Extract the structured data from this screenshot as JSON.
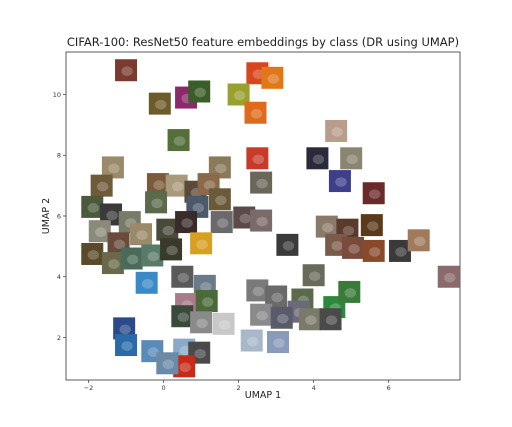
{
  "chart_data": {
    "type": "scatter",
    "title": "CIFAR-100: ResNet50 feature embeddings by class (DR using UMAP)",
    "xlabel": "UMAP 1",
    "ylabel": "UMAP 2",
    "xlim": [
      -2.6,
      7.9
    ],
    "ylim": [
      0.6,
      11.4
    ],
    "xticks": [
      -2,
      0,
      2,
      4,
      6
    ],
    "yticks": [
      2,
      4,
      6,
      8,
      10
    ],
    "grid": false,
    "legend": "none",
    "points": [
      {
        "x": -1.0,
        "y": 10.8,
        "c": "#7a3b2e"
      },
      {
        "x": -0.1,
        "y": 9.7,
        "c": "#6d5b2a"
      },
      {
        "x": 0.6,
        "y": 9.9,
        "c": "#8a2a6a"
      },
      {
        "x": 0.95,
        "y": 10.1,
        "c": "#3b5d2a"
      },
      {
        "x": 2.5,
        "y": 10.7,
        "c": "#d8461b"
      },
      {
        "x": 2.9,
        "y": 10.55,
        "c": "#e0781a"
      },
      {
        "x": 2.0,
        "y": 10.0,
        "c": "#9aa02e"
      },
      {
        "x": 2.45,
        "y": 9.4,
        "c": "#e06a1b"
      },
      {
        "x": 4.6,
        "y": 8.8,
        "c": "#b89d8a"
      },
      {
        "x": 0.4,
        "y": 8.5,
        "c": "#556f3a"
      },
      {
        "x": 2.5,
        "y": 7.9,
        "c": "#c83a2a"
      },
      {
        "x": 4.1,
        "y": 7.9,
        "c": "#2a2a3a"
      },
      {
        "x": 5.0,
        "y": 7.9,
        "c": "#8a8470"
      },
      {
        "x": 1.5,
        "y": 7.6,
        "c": "#8a7a5a"
      },
      {
        "x": 2.6,
        "y": 7.1,
        "c": "#6b665a"
      },
      {
        "x": 4.7,
        "y": 7.15,
        "c": "#3e3e8a"
      },
      {
        "x": 5.6,
        "y": 6.75,
        "c": "#6a2a2a"
      },
      {
        "x": -1.35,
        "y": 7.6,
        "c": "#9a8a6a"
      },
      {
        "x": -1.65,
        "y": 7.0,
        "c": "#6f5a3a"
      },
      {
        "x": -0.15,
        "y": 7.05,
        "c": "#7a5a3a"
      },
      {
        "x": 0.35,
        "y": 7.0,
        "c": "#a89a7a"
      },
      {
        "x": 0.85,
        "y": 6.8,
        "c": "#5a4a3a"
      },
      {
        "x": 1.2,
        "y": 7.05,
        "c": "#8a6a4a"
      },
      {
        "x": -1.9,
        "y": 6.3,
        "c": "#4a5a3a"
      },
      {
        "x": -1.4,
        "y": 6.05,
        "c": "#3a3a3a"
      },
      {
        "x": -0.9,
        "y": 5.8,
        "c": "#7a7a6a"
      },
      {
        "x": -0.2,
        "y": 6.45,
        "c": "#5a6a4a"
      },
      {
        "x": 0.9,
        "y": 6.3,
        "c": "#4a5a6a"
      },
      {
        "x": 1.5,
        "y": 6.55,
        "c": "#6a5a3a"
      },
      {
        "x": -1.7,
        "y": 5.5,
        "c": "#8a8a7a"
      },
      {
        "x": -1.2,
        "y": 5.1,
        "c": "#6a4a3a"
      },
      {
        "x": -0.6,
        "y": 5.4,
        "c": "#9a8a6a"
      },
      {
        "x": 0.1,
        "y": 5.55,
        "c": "#4a4a3a"
      },
      {
        "x": 0.6,
        "y": 5.8,
        "c": "#3a2a2a"
      },
      {
        "x": 1.55,
        "y": 5.8,
        "c": "#6a6a6a"
      },
      {
        "x": 2.15,
        "y": 5.95,
        "c": "#5a4a4a"
      },
      {
        "x": 2.6,
        "y": 5.85,
        "c": "#7a6a6a"
      },
      {
        "x": -1.9,
        "y": 4.75,
        "c": "#5a4a2a"
      },
      {
        "x": -1.35,
        "y": 4.45,
        "c": "#6a6a4a"
      },
      {
        "x": -0.85,
        "y": 4.6,
        "c": "#4a6a5a"
      },
      {
        "x": -0.3,
        "y": 4.7,
        "c": "#5a7a6a"
      },
      {
        "x": 0.2,
        "y": 4.9,
        "c": "#3a3a2a"
      },
      {
        "x": 1.0,
        "y": 5.1,
        "c": "#d8a020"
      },
      {
        "x": -0.45,
        "y": 3.8,
        "c": "#3a8ac8"
      },
      {
        "x": 0.5,
        "y": 4.0,
        "c": "#5a5a5a"
      },
      {
        "x": 1.1,
        "y": 3.7,
        "c": "#6a7a8a"
      },
      {
        "x": 0.6,
        "y": 3.1,
        "c": "#a87a8a"
      },
      {
        "x": 1.15,
        "y": 3.2,
        "c": "#4a6a3a"
      },
      {
        "x": 0.5,
        "y": 2.7,
        "c": "#3a4a3a"
      },
      {
        "x": 1.0,
        "y": 2.5,
        "c": "#8a8a8a"
      },
      {
        "x": 1.6,
        "y": 2.45,
        "c": "#c8c8c8"
      },
      {
        "x": 3.3,
        "y": 5.05,
        "c": "#3a3a3a"
      },
      {
        "x": 4.35,
        "y": 5.65,
        "c": "#8a7a6a"
      },
      {
        "x": 4.9,
        "y": 5.55,
        "c": "#5a3a2a"
      },
      {
        "x": 5.55,
        "y": 5.7,
        "c": "#5a3a1a"
      },
      {
        "x": 4.6,
        "y": 5.05,
        "c": "#7a5a4a"
      },
      {
        "x": 5.05,
        "y": 4.95,
        "c": "#7a4a3a"
      },
      {
        "x": 5.6,
        "y": 4.85,
        "c": "#8a4a2a"
      },
      {
        "x": 6.3,
        "y": 4.85,
        "c": "#3a3a3a"
      },
      {
        "x": 6.8,
        "y": 5.2,
        "c": "#a07a5a"
      },
      {
        "x": 7.6,
        "y": 4.0,
        "c": "#8a6a6a"
      },
      {
        "x": 4.0,
        "y": 4.05,
        "c": "#6a6a5a"
      },
      {
        "x": 2.5,
        "y": 3.55,
        "c": "#7a7a7a"
      },
      {
        "x": 3.0,
        "y": 3.35,
        "c": "#6a6a6a"
      },
      {
        "x": 3.7,
        "y": 3.25,
        "c": "#5a6a4a"
      },
      {
        "x": 4.55,
        "y": 3.0,
        "c": "#2a8a3a"
      },
      {
        "x": 4.95,
        "y": 3.5,
        "c": "#3a7a3a"
      },
      {
        "x": 3.6,
        "y": 2.85,
        "c": "#6a6a7a"
      },
      {
        "x": 2.6,
        "y": 2.75,
        "c": "#8a8a8a"
      },
      {
        "x": 3.15,
        "y": 2.65,
        "c": "#5a5a6a"
      },
      {
        "x": 3.9,
        "y": 2.6,
        "c": "#7a7a6a"
      },
      {
        "x": 4.45,
        "y": 2.6,
        "c": "#4a4a4a"
      },
      {
        "x": 2.35,
        "y": 1.9,
        "c": "#a8b8c8"
      },
      {
        "x": 3.05,
        "y": 1.85,
        "c": "#8a9aba"
      },
      {
        "x": -1.05,
        "y": 2.3,
        "c": "#2a4a8a"
      },
      {
        "x": -1.0,
        "y": 1.75,
        "c": "#2a6aa8"
      },
      {
        "x": -0.3,
        "y": 1.55,
        "c": "#5a8ab8"
      },
      {
        "x": 0.55,
        "y": 1.6,
        "c": "#8aa8c8"
      },
      {
        "x": 0.95,
        "y": 1.5,
        "c": "#4a4a4a"
      },
      {
        "x": 0.55,
        "y": 1.05,
        "c": "#c82a1a"
      },
      {
        "x": 0.1,
        "y": 1.15,
        "c": "#6a8aa8"
      }
    ]
  }
}
